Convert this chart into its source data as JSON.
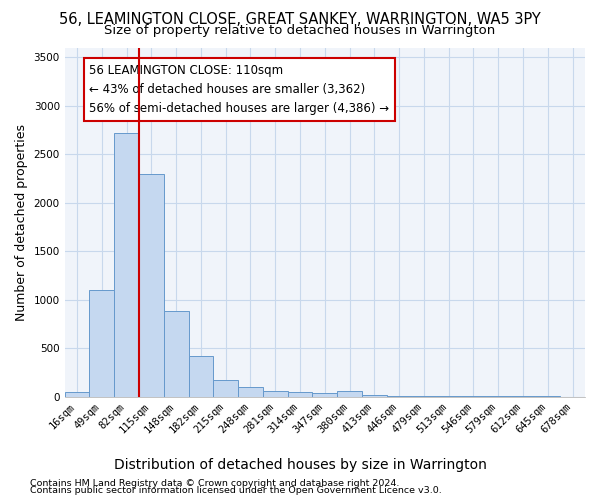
{
  "title": "56, LEAMINGTON CLOSE, GREAT SANKEY, WARRINGTON, WA5 3PY",
  "subtitle": "Size of property relative to detached houses in Warrington",
  "xlabel": "Distribution of detached houses by size in Warrington",
  "ylabel": "Number of detached properties",
  "categories": [
    "16sqm",
    "49sqm",
    "82sqm",
    "115sqm",
    "148sqm",
    "182sqm",
    "215sqm",
    "248sqm",
    "281sqm",
    "314sqm",
    "347sqm",
    "380sqm",
    "413sqm",
    "446sqm",
    "479sqm",
    "513sqm",
    "546sqm",
    "579sqm",
    "612sqm",
    "645sqm",
    "678sqm"
  ],
  "values": [
    50,
    1100,
    2720,
    2300,
    880,
    420,
    175,
    100,
    60,
    45,
    35,
    55,
    20,
    10,
    6,
    3,
    2,
    1,
    1,
    1,
    0
  ],
  "bar_color": "#c5d8f0",
  "bar_edge_color": "#6699cc",
  "vline_color": "#cc0000",
  "annotation_text": "56 LEAMINGTON CLOSE: 110sqm\n← 43% of detached houses are smaller (3,362)\n56% of semi-detached houses are larger (4,386) →",
  "annotation_box_color": "#ffffff",
  "annotation_box_edge": "#cc0000",
  "ylim": [
    0,
    3600
  ],
  "yticks": [
    0,
    500,
    1000,
    1500,
    2000,
    2500,
    3000,
    3500
  ],
  "footer1": "Contains HM Land Registry data © Crown copyright and database right 2024.",
  "footer2": "Contains public sector information licensed under the Open Government Licence v3.0.",
  "bg_color": "#ffffff",
  "plot_bg": "#f0f4fa",
  "title_fontsize": 10.5,
  "subtitle_fontsize": 9.5,
  "tick_fontsize": 7.5,
  "ylabel_fontsize": 9,
  "xlabel_fontsize": 10,
  "annotation_fontsize": 8.5,
  "footer_fontsize": 6.8
}
